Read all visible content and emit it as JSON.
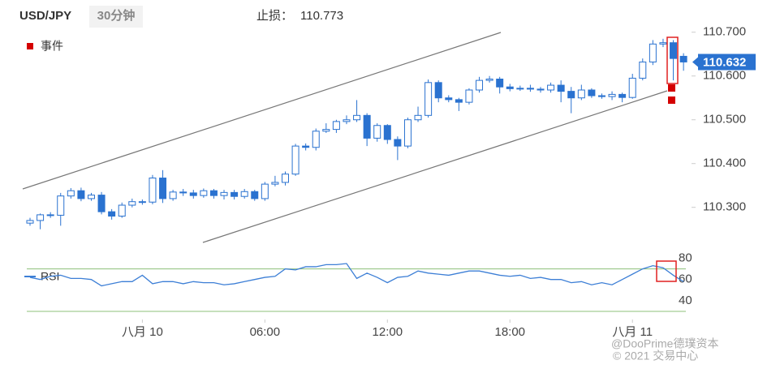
{
  "header": {
    "symbol": "USD/JPY",
    "interval": "30分钟",
    "stop_loss_label": "止损：",
    "stop_loss": 110.773,
    "events_legend": "事件"
  },
  "watermark": {
    "brand": "@DooPrime德璞资本",
    "copyright": "© 2021 交易中心"
  },
  "chart_data": [
    {
      "type": "candlestick",
      "last_price": 110.632,
      "up_color": "#ffffff",
      "down_color": "#2a72d0",
      "edge_color": "#2a72d0",
      "ylim": [
        110.218,
        110.718
      ],
      "yticks": [
        {
          "value": 110.3,
          "label": "110.300"
        },
        {
          "value": 110.4,
          "label": "110.400"
        },
        {
          "value": 110.5,
          "label": "110.500"
        },
        {
          "value": 110.6,
          "label": "110.600"
        },
        {
          "value": 110.7,
          "label": "110.700"
        }
      ],
      "open": [
        110.264,
        110.27,
        110.283,
        110.282,
        110.326,
        110.338,
        110.32,
        110.328,
        110.29,
        110.28,
        110.305,
        110.313,
        110.312,
        110.367,
        110.32,
        110.335,
        110.333,
        110.327,
        110.338,
        110.327,
        110.334,
        110.325,
        110.336,
        110.32,
        110.353,
        110.357,
        110.376,
        110.44,
        110.437,
        110.474,
        110.478,
        110.496,
        110.5,
        110.51,
        110.458,
        110.487,
        110.455,
        110.44,
        110.5,
        110.51,
        110.585,
        110.55,
        110.546,
        110.54,
        110.568,
        110.59,
        110.593,
        110.575,
        110.571,
        110.572,
        110.57,
        110.568,
        110.579,
        110.565,
        110.55,
        110.568,
        110.555,
        110.553,
        110.558,
        110.551,
        110.595,
        110.632,
        110.673,
        110.676,
        110.645
      ],
      "high": [
        110.276,
        110.286,
        110.289,
        110.333,
        110.344,
        110.345,
        110.333,
        110.335,
        110.296,
        110.311,
        110.32,
        110.318,
        110.374,
        110.385,
        110.34,
        110.342,
        110.34,
        110.343,
        110.342,
        110.34,
        110.34,
        110.342,
        110.34,
        110.358,
        110.372,
        110.382,
        110.445,
        110.446,
        110.48,
        110.492,
        110.5,
        110.51,
        110.545,
        110.515,
        110.492,
        110.49,
        110.462,
        110.505,
        110.53,
        110.592,
        110.59,
        110.556,
        110.55,
        110.572,
        110.598,
        110.6,
        110.598,
        110.582,
        110.578,
        110.58,
        110.575,
        110.585,
        110.59,
        110.575,
        110.58,
        110.572,
        110.56,
        110.565,
        110.562,
        110.605,
        110.64,
        110.682,
        110.685,
        110.682,
        110.652
      ],
      "low": [
        110.258,
        110.25,
        110.276,
        110.258,
        110.32,
        110.314,
        110.315,
        110.284,
        110.272,
        110.276,
        110.3,
        110.306,
        110.307,
        110.31,
        110.315,
        110.326,
        110.32,
        110.322,
        110.32,
        110.318,
        110.318,
        110.32,
        110.315,
        110.315,
        110.348,
        110.35,
        110.372,
        110.43,
        110.43,
        110.47,
        110.47,
        110.49,
        110.495,
        110.44,
        110.45,
        110.445,
        110.408,
        110.435,
        110.495,
        110.505,
        110.54,
        110.54,
        110.52,
        110.535,
        110.562,
        110.585,
        110.56,
        110.565,
        110.566,
        110.564,
        110.562,
        110.562,
        110.54,
        110.515,
        110.545,
        110.55,
        110.548,
        110.545,
        110.54,
        110.548,
        110.59,
        110.625,
        110.666,
        110.59,
        110.612
      ],
      "close": [
        110.27,
        110.283,
        110.282,
        110.326,
        110.338,
        110.32,
        110.328,
        110.29,
        110.28,
        110.305,
        110.313,
        110.312,
        110.367,
        110.32,
        110.335,
        110.333,
        110.327,
        110.338,
        110.327,
        110.334,
        110.325,
        110.336,
        110.32,
        110.353,
        110.357,
        110.376,
        110.44,
        110.437,
        110.474,
        110.478,
        110.496,
        110.5,
        110.51,
        110.458,
        110.487,
        110.455,
        110.44,
        110.5,
        110.51,
        110.585,
        110.55,
        110.546,
        110.54,
        110.568,
        110.59,
        110.593,
        110.575,
        110.571,
        110.572,
        110.57,
        110.568,
        110.579,
        110.565,
        110.55,
        110.568,
        110.555,
        110.553,
        110.558,
        110.551,
        110.595,
        110.632,
        110.673,
        110.676,
        110.64,
        110.632
      ]
    },
    {
      "type": "line",
      "series": [
        {
          "name": "RSI",
          "color": "#3d7fd6",
          "values": [
            62,
            60,
            63,
            64,
            61,
            61,
            60,
            54,
            56,
            58,
            58,
            64,
            56,
            58,
            58,
            56,
            58,
            57,
            57,
            55,
            56,
            58,
            60,
            62,
            63,
            70,
            69,
            72,
            72,
            74,
            74,
            75,
            61,
            66,
            62,
            57,
            62,
            63,
            68,
            66,
            65,
            64,
            66,
            68,
            68,
            66,
            64,
            63,
            64,
            61,
            62,
            60,
            60,
            57,
            58,
            55,
            57,
            55,
            60,
            65,
            70,
            73,
            71,
            64,
            58
          ]
        }
      ],
      "levels": [
        30,
        70
      ],
      "level_color": "#8cc07a",
      "ylim": [
        28,
        88
      ],
      "yticks": [
        40,
        60,
        80
      ],
      "xticks": [
        {
          "value": 11,
          "label": "八月 10"
        },
        {
          "value": 23,
          "label": "06:00"
        },
        {
          "value": 35,
          "label": "12:00"
        },
        {
          "value": 47,
          "label": "18:00"
        },
        {
          "value": 59,
          "label": "八月 11"
        }
      ]
    }
  ]
}
